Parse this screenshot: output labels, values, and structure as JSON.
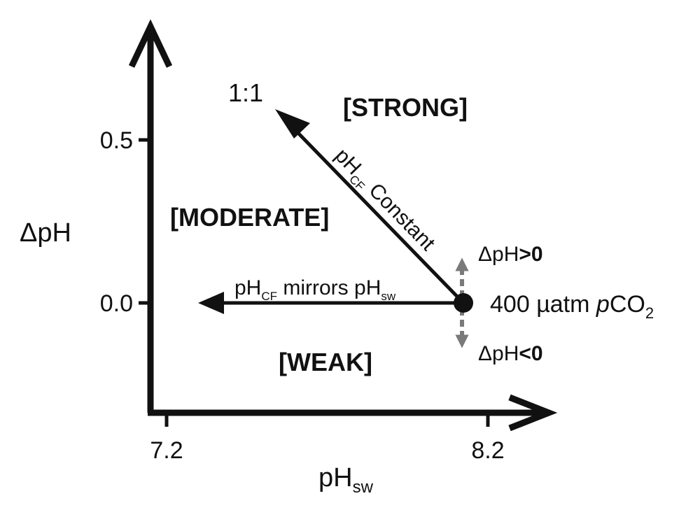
{
  "axes": {
    "x_label": "pH",
    "x_label_sub": "sw",
    "y_label": "ΔpH",
    "x_ticks": [
      "7.2",
      "8.2"
    ],
    "y_ticks": [
      "0.5",
      "0.0"
    ]
  },
  "regions": {
    "strong": "[STRONG]",
    "moderate": "[MODERATE]",
    "weak": "[WEAK]"
  },
  "annotations": {
    "one_to_one": "1:1",
    "diag_prefix": "pH",
    "diag_sub": "CF",
    "diag_suffix": " Constant",
    "horiz_prefix": "pH",
    "horiz_sub1": "CF",
    "horiz_mid": " mirrors pH",
    "horiz_sub2": "sw",
    "dph_pos_prefix": "ΔpH",
    "dph_pos_op": ">0",
    "dph_neg_prefix": "ΔpH",
    "dph_neg_op": "<0",
    "point_value": "400 ",
    "point_unit": "µatm ",
    "point_var": "p",
    "point_species": "CO",
    "point_sub": "2"
  },
  "colors": {
    "ink": "#111111",
    "dashed_arrow": "#7a7a7a"
  }
}
